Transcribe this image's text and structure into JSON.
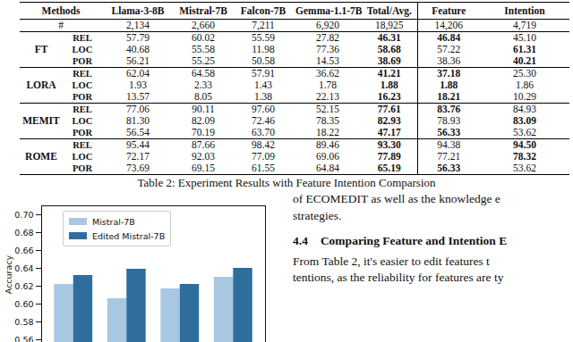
{
  "table": {
    "header": [
      "Methods",
      "Llama-3-8B",
      "Mistral-7B",
      "Falcon-7B",
      "Gemma-1.1-7B",
      "Total/Avg.",
      "Feature",
      "Intention"
    ],
    "count_row": {
      "label": "#",
      "cells": [
        "2,134",
        "2,660",
        "7,211",
        "6,920",
        "18,925",
        "14,206",
        "4,719"
      ]
    },
    "groups": [
      {
        "method": "FT",
        "rows": [
          {
            "metric": "REL",
            "cells": [
              "57.79",
              "60.02",
              "55.59",
              "27.82",
              "46.31",
              "46.84",
              "45.10"
            ],
            "bold": [
              4,
              5
            ]
          },
          {
            "metric": "LOC",
            "cells": [
              "40.68",
              "55.58",
              "11.98",
              "77.36",
              "58.68",
              "57.22",
              "61.31"
            ],
            "bold": [
              4,
              6
            ]
          },
          {
            "metric": "POR",
            "cells": [
              "56.21",
              "55.25",
              "50.58",
              "14.53",
              "38.69",
              "38.36",
              "40.21"
            ],
            "bold": [
              4,
              6
            ]
          }
        ]
      },
      {
        "method": "LORA",
        "rows": [
          {
            "metric": "REL",
            "cells": [
              "62.04",
              "64.58",
              "57.91",
              "36.62",
              "41.21",
              "37.18",
              "25.30"
            ],
            "bold": [
              4,
              5
            ]
          },
          {
            "metric": "LOC",
            "cells": [
              "1.93",
              "2.33",
              "1.43",
              "1.78",
              "1.88",
              "1.88",
              "1.86"
            ],
            "bold": [
              4,
              5
            ]
          },
          {
            "metric": "POR",
            "cells": [
              "13.57",
              "8.05",
              "1.38",
              "22.13",
              "16.23",
              "18.21",
              "10.29"
            ],
            "bold": [
              4,
              5
            ]
          }
        ]
      },
      {
        "method": "MEMIT",
        "rows": [
          {
            "metric": "REL",
            "cells": [
              "77.06",
              "90.11",
              "97.60",
              "52.15",
              "77.61",
              "83.76",
              "84.93"
            ],
            "bold": [
              4,
              5
            ]
          },
          {
            "metric": "LOC",
            "cells": [
              "81.30",
              "82.09",
              "72.46",
              "78.35",
              "82.93",
              "78.93",
              "83.09"
            ],
            "bold": [
              4,
              6
            ]
          },
          {
            "metric": "POR",
            "cells": [
              "56.54",
              "70.19",
              "63.70",
              "18.22",
              "47.17",
              "56.33",
              "53.62"
            ],
            "bold": [
              4,
              5
            ]
          }
        ]
      },
      {
        "method": "ROME",
        "rows": [
          {
            "metric": "REL",
            "cells": [
              "95.44",
              "87.66",
              "98.42",
              "89.46",
              "93.30",
              "94.38",
              "94.50"
            ],
            "bold": [
              4,
              6
            ]
          },
          {
            "metric": "LOC",
            "cells": [
              "72.17",
              "92.03",
              "77.09",
              "69.06",
              "77.89",
              "77.21",
              "78.32"
            ],
            "bold": [
              4,
              6
            ]
          },
          {
            "metric": "POR",
            "cells": [
              "73.69",
              "69.15",
              "61.55",
              "64.84",
              "65.19",
              "56.33",
              "53.62"
            ],
            "bold": [
              4,
              5
            ]
          }
        ]
      }
    ],
    "caption": "Table 2: Experiment Results with Feature Intention Comparsion"
  },
  "chart_data": {
    "type": "bar",
    "y_label": "Accuracy",
    "categories": [
      null,
      null,
      null,
      null
    ],
    "series": [
      {
        "name": "Mistral-7B",
        "color": "#a7c8e0",
        "values": [
          0.622,
          0.606,
          0.617,
          0.63
        ]
      },
      {
        "name": "Edited Mistral-7B",
        "color": "#2f6e9c",
        "values": [
          0.632,
          0.639,
          0.622,
          0.64
        ]
      }
    ],
    "ylim": [
      0.556,
      0.71
    ],
    "yticks": [
      0.56,
      0.58,
      {
        "value": 0.6,
        "label": "0.60"
      },
      0.62,
      0.64,
      0.66,
      0.68,
      {
        "value": 0.7,
        "label": "0.70"
      }
    ],
    "grid": false,
    "legend": "top-left"
  },
  "text": {
    "lines_before": [
      "of ECOMEDIT as well as the knowledge e",
      "strategies."
    ],
    "heading": {
      "number": "4.4",
      "title": "Comparing Feature and Intention E"
    },
    "lines_after": [
      "From Table 2, it's easier to edit features t",
      "tentions, as the reliability for features are ty"
    ]
  }
}
